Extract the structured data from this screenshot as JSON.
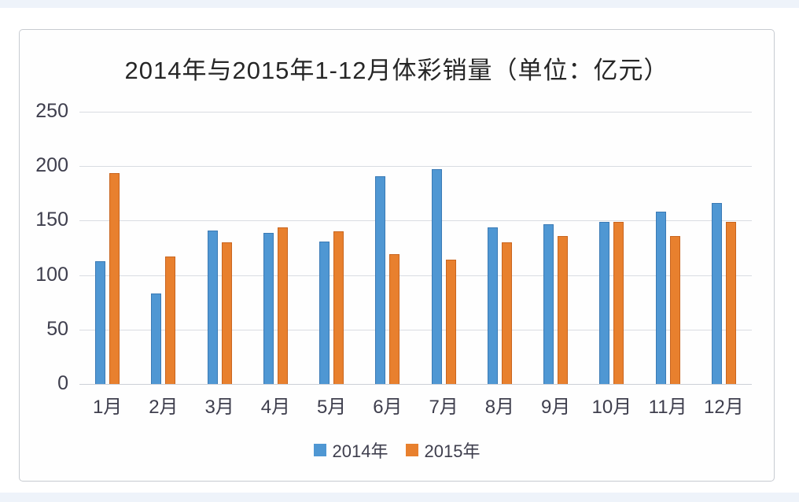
{
  "page": {
    "edge_strip_color": "#eef3fa",
    "chart_background": "#fefefe",
    "chart_border_color": "#c7cbd1",
    "grid_color": "#d9dce2",
    "axis_text_color": "#3e3e4d",
    "title_color": "#262626"
  },
  "chart_data": {
    "type": "bar",
    "title": "2014年与2015年1-12月体彩销量（单位：亿元）",
    "categories": [
      "1月",
      "2月",
      "3月",
      "4月",
      "5月",
      "6月",
      "7月",
      "8月",
      "9月",
      "10月",
      "11月",
      "12月"
    ],
    "series": [
      {
        "name": "2014年",
        "color": "#4f97d3",
        "border_color": "#3a7ab5",
        "values": [
          113,
          83,
          141,
          139,
          131,
          191,
          197,
          144,
          147,
          149,
          158,
          166
        ]
      },
      {
        "name": "2015年",
        "color": "#e8802e",
        "border_color": "#c9651f",
        "values": [
          194,
          117,
          130,
          144,
          140,
          119,
          114,
          130,
          136,
          149,
          136,
          149
        ]
      }
    ],
    "xlabel": "",
    "ylabel": "",
    "ylim": [
      0,
      250
    ],
    "yticks": [
      0,
      50,
      100,
      150,
      200,
      250
    ],
    "grid": true,
    "legend_position": "bottom"
  }
}
